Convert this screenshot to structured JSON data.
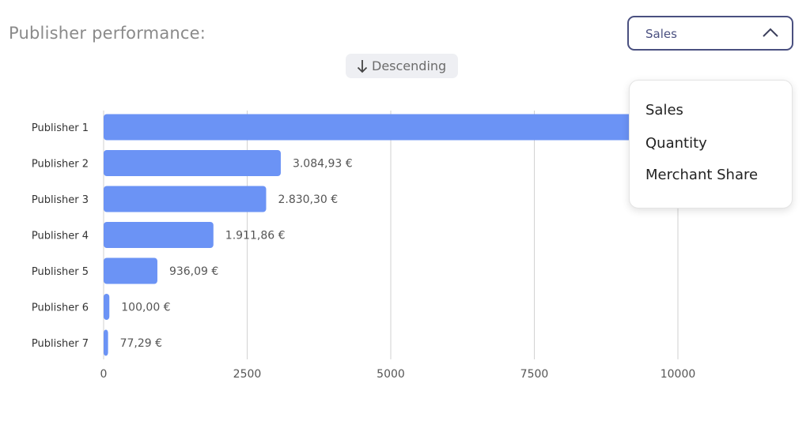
{
  "header": {
    "title": "Publisher performance:"
  },
  "metric_select": {
    "selected": "Sales",
    "icon": "chevron-up-icon",
    "options": [
      "Sales",
      "Quantity",
      "Merchant Share"
    ]
  },
  "sort_toggle": {
    "label": "Descending",
    "icon": "arrow-down-icon"
  },
  "colors": {
    "bar": "#6b93f5",
    "select_border": "#4a5080"
  },
  "chart_data": {
    "type": "bar",
    "orientation": "horizontal",
    "categories": [
      "Publisher 1",
      "Publisher 2",
      "Publisher 3",
      "Publisher 4",
      "Publisher 5",
      "Publisher 6",
      "Publisher 7"
    ],
    "values": [
      9400,
      3084.93,
      2830.3,
      1911.86,
      936.09,
      100.0,
      77.29
    ],
    "value_labels": [
      "",
      "3.084,93 €",
      "2.830,30 €",
      "1.911,86 €",
      "936,09 €",
      "100,00 €",
      "77,29 €"
    ],
    "xlim": [
      0,
      10000
    ],
    "x_ticks": [
      0,
      2500,
      5000,
      7500,
      10000
    ],
    "x_tick_labels": [
      "0",
      "2500",
      "5000",
      "7500",
      "10000"
    ],
    "grid": true,
    "legend": "none"
  }
}
